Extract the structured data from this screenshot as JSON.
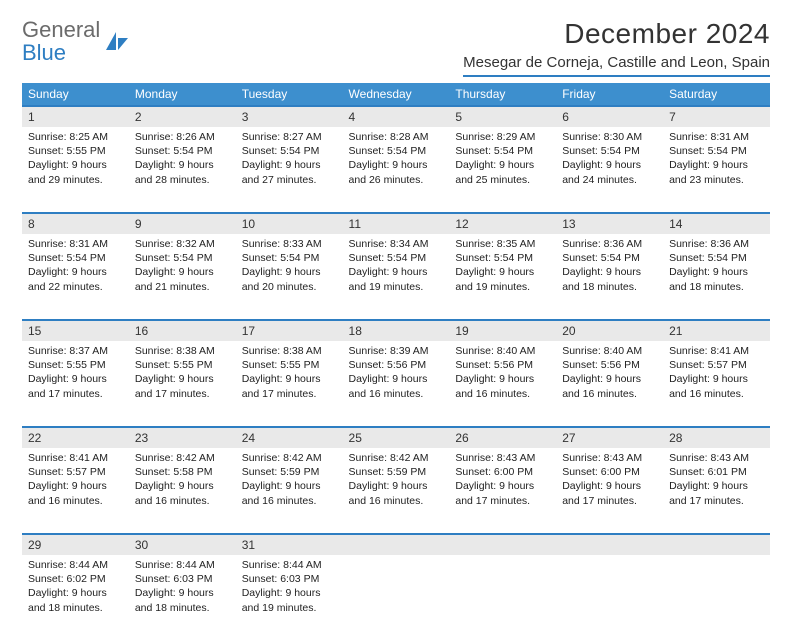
{
  "logo": {
    "line1": "General",
    "line2": "Blue"
  },
  "title": "December 2024",
  "subtitle": "Mesegar de Corneja, Castille and Leon, Spain",
  "colors": {
    "header_bg": "#3d8fce",
    "accent": "#2e7ec2",
    "daynum_bg": "#e9e9e9",
    "text": "#222222"
  },
  "weekdays": [
    "Sunday",
    "Monday",
    "Tuesday",
    "Wednesday",
    "Thursday",
    "Friday",
    "Saturday"
  ],
  "weeks": [
    [
      {
        "n": "1",
        "sunrise": "8:25 AM",
        "sunset": "5:55 PM",
        "dlh": "9",
        "dlm": "29"
      },
      {
        "n": "2",
        "sunrise": "8:26 AM",
        "sunset": "5:54 PM",
        "dlh": "9",
        "dlm": "28"
      },
      {
        "n": "3",
        "sunrise": "8:27 AM",
        "sunset": "5:54 PM",
        "dlh": "9",
        "dlm": "27"
      },
      {
        "n": "4",
        "sunrise": "8:28 AM",
        "sunset": "5:54 PM",
        "dlh": "9",
        "dlm": "26"
      },
      {
        "n": "5",
        "sunrise": "8:29 AM",
        "sunset": "5:54 PM",
        "dlh": "9",
        "dlm": "25"
      },
      {
        "n": "6",
        "sunrise": "8:30 AM",
        "sunset": "5:54 PM",
        "dlh": "9",
        "dlm": "24"
      },
      {
        "n": "7",
        "sunrise": "8:31 AM",
        "sunset": "5:54 PM",
        "dlh": "9",
        "dlm": "23"
      }
    ],
    [
      {
        "n": "8",
        "sunrise": "8:31 AM",
        "sunset": "5:54 PM",
        "dlh": "9",
        "dlm": "22"
      },
      {
        "n": "9",
        "sunrise": "8:32 AM",
        "sunset": "5:54 PM",
        "dlh": "9",
        "dlm": "21"
      },
      {
        "n": "10",
        "sunrise": "8:33 AM",
        "sunset": "5:54 PM",
        "dlh": "9",
        "dlm": "20"
      },
      {
        "n": "11",
        "sunrise": "8:34 AM",
        "sunset": "5:54 PM",
        "dlh": "9",
        "dlm": "19"
      },
      {
        "n": "12",
        "sunrise": "8:35 AM",
        "sunset": "5:54 PM",
        "dlh": "9",
        "dlm": "19"
      },
      {
        "n": "13",
        "sunrise": "8:36 AM",
        "sunset": "5:54 PM",
        "dlh": "9",
        "dlm": "18"
      },
      {
        "n": "14",
        "sunrise": "8:36 AM",
        "sunset": "5:54 PM",
        "dlh": "9",
        "dlm": "18"
      }
    ],
    [
      {
        "n": "15",
        "sunrise": "8:37 AM",
        "sunset": "5:55 PM",
        "dlh": "9",
        "dlm": "17"
      },
      {
        "n": "16",
        "sunrise": "8:38 AM",
        "sunset": "5:55 PM",
        "dlh": "9",
        "dlm": "17"
      },
      {
        "n": "17",
        "sunrise": "8:38 AM",
        "sunset": "5:55 PM",
        "dlh": "9",
        "dlm": "17"
      },
      {
        "n": "18",
        "sunrise": "8:39 AM",
        "sunset": "5:56 PM",
        "dlh": "9",
        "dlm": "16"
      },
      {
        "n": "19",
        "sunrise": "8:40 AM",
        "sunset": "5:56 PM",
        "dlh": "9",
        "dlm": "16"
      },
      {
        "n": "20",
        "sunrise": "8:40 AM",
        "sunset": "5:56 PM",
        "dlh": "9",
        "dlm": "16"
      },
      {
        "n": "21",
        "sunrise": "8:41 AM",
        "sunset": "5:57 PM",
        "dlh": "9",
        "dlm": "16"
      }
    ],
    [
      {
        "n": "22",
        "sunrise": "8:41 AM",
        "sunset": "5:57 PM",
        "dlh": "9",
        "dlm": "16"
      },
      {
        "n": "23",
        "sunrise": "8:42 AM",
        "sunset": "5:58 PM",
        "dlh": "9",
        "dlm": "16"
      },
      {
        "n": "24",
        "sunrise": "8:42 AM",
        "sunset": "5:59 PM",
        "dlh": "9",
        "dlm": "16"
      },
      {
        "n": "25",
        "sunrise": "8:42 AM",
        "sunset": "5:59 PM",
        "dlh": "9",
        "dlm": "16"
      },
      {
        "n": "26",
        "sunrise": "8:43 AM",
        "sunset": "6:00 PM",
        "dlh": "9",
        "dlm": "17"
      },
      {
        "n": "27",
        "sunrise": "8:43 AM",
        "sunset": "6:00 PM",
        "dlh": "9",
        "dlm": "17"
      },
      {
        "n": "28",
        "sunrise": "8:43 AM",
        "sunset": "6:01 PM",
        "dlh": "9",
        "dlm": "17"
      }
    ],
    [
      {
        "n": "29",
        "sunrise": "8:44 AM",
        "sunset": "6:02 PM",
        "dlh": "9",
        "dlm": "18"
      },
      {
        "n": "30",
        "sunrise": "8:44 AM",
        "sunset": "6:03 PM",
        "dlh": "9",
        "dlm": "18"
      },
      {
        "n": "31",
        "sunrise": "8:44 AM",
        "sunset": "6:03 PM",
        "dlh": "9",
        "dlm": "19"
      },
      null,
      null,
      null,
      null
    ]
  ]
}
